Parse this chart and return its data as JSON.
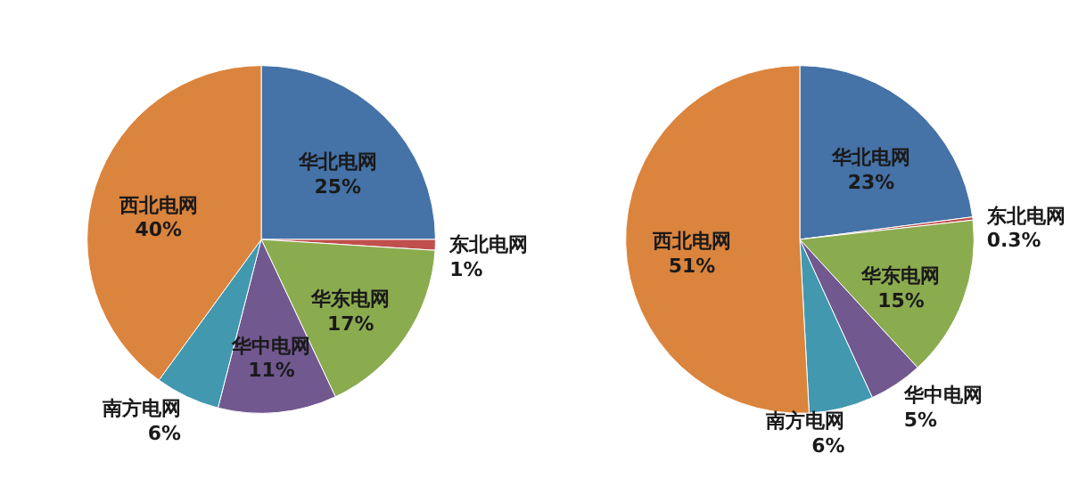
{
  "chart_data": [
    {
      "type": "pie",
      "categories": [
        "华北电网",
        "东北电网",
        "华东电网",
        "华中电网",
        "南方电网",
        "西北电网"
      ],
      "values": [
        25,
        1,
        17,
        11,
        6,
        40
      ],
      "value_labels": [
        "25%",
        "1%",
        "17%",
        "11%",
        "6%",
        "40%"
      ],
      "colors": [
        "#4572a7",
        "#c0504d",
        "#8bab4f",
        "#71588f",
        "#4198af",
        "#db843d"
      ],
      "legend": false
    },
    {
      "type": "pie",
      "categories": [
        "华北电网",
        "东北电网",
        "华东电网",
        "华中电网",
        "南方电网",
        "西北电网"
      ],
      "values": [
        23,
        0.3,
        15,
        5,
        6,
        51
      ],
      "value_labels": [
        "23%",
        "0.3%",
        "15%",
        "5%",
        "6%",
        "51%"
      ],
      "colors": [
        "#4572a7",
        "#c0504d",
        "#8bab4f",
        "#71588f",
        "#4198af",
        "#db843d"
      ],
      "legend": false
    }
  ]
}
